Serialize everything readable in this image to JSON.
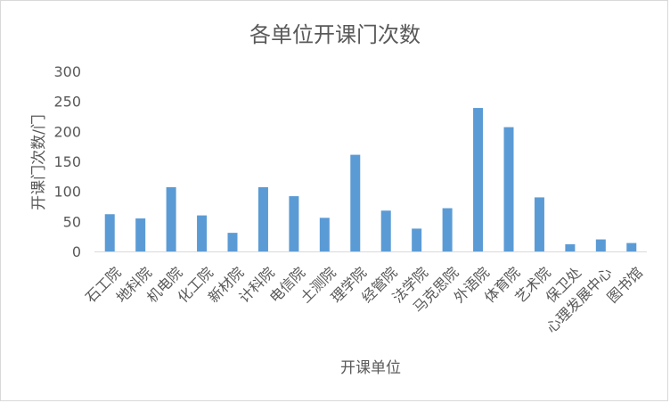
{
  "chart_data": {
    "type": "bar",
    "title": "各单位开课门次数",
    "xlabel": "开课单位",
    "ylabel": "开课门次数/门",
    "categories": [
      "石工院",
      "地科院",
      "机电院",
      "化工院",
      "新材院",
      "计科院",
      "电信院",
      "土测院",
      "理学院",
      "经管院",
      "法学院",
      "马克思院",
      "外语院",
      "体育院",
      "艺术院",
      "保卫处",
      "心理发展中心",
      "图书馆"
    ],
    "values": [
      62,
      55,
      107,
      60,
      31,
      107,
      92,
      56,
      161,
      68,
      38,
      72,
      239,
      207,
      90,
      12,
      20,
      14
    ],
    "ylim": [
      0,
      300
    ],
    "yticks": [
      0,
      50,
      100,
      150,
      200,
      250,
      300
    ],
    "grid": false,
    "legend": "none",
    "bar_color": "#5b9bd5"
  }
}
